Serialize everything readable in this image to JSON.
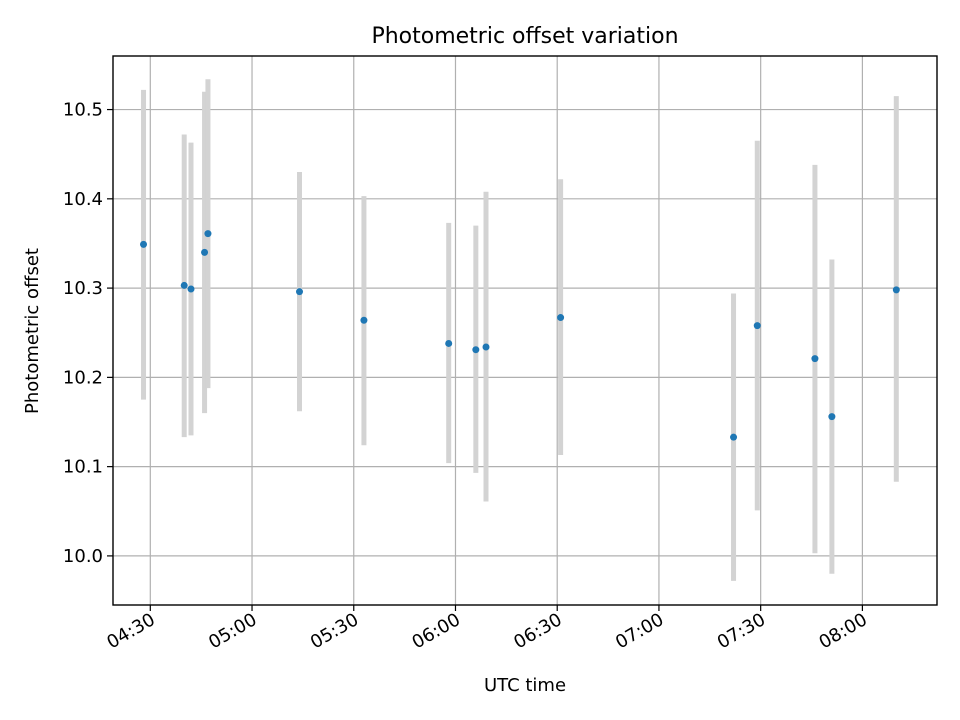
{
  "chart_data": {
    "type": "scatter",
    "title": "Photometric offset variation",
    "xlabel": "UTC time",
    "ylabel": "Photometric offset",
    "grid": true,
    "legend": "none",
    "colors": {
      "points": "#1f77b4",
      "errorbars": "#d3d3d3"
    },
    "xlim": [
      "04:19",
      "08:22"
    ],
    "ylim": [
      9.945,
      10.56
    ],
    "x_ticks": [
      "04:30",
      "05:00",
      "05:30",
      "06:00",
      "06:30",
      "07:00",
      "07:30",
      "08:00"
    ],
    "y_ticks": [
      "10.0",
      "10.1",
      "10.2",
      "10.3",
      "10.4",
      "10.5"
    ],
    "points": [
      {
        "x": "04:28",
        "y": 10.349,
        "ylow": 10.175,
        "yhigh": 10.522
      },
      {
        "x": "04:40",
        "y": 10.303,
        "ylow": 10.133,
        "yhigh": 10.472
      },
      {
        "x": "04:42",
        "y": 10.299,
        "ylow": 10.135,
        "yhigh": 10.463
      },
      {
        "x": "04:46",
        "y": 10.34,
        "ylow": 10.16,
        "yhigh": 10.52
      },
      {
        "x": "04:47",
        "y": 10.361,
        "ylow": 10.188,
        "yhigh": 10.534
      },
      {
        "x": "05:14",
        "y": 10.296,
        "ylow": 10.162,
        "yhigh": 10.43
      },
      {
        "x": "05:33",
        "y": 10.264,
        "ylow": 10.124,
        "yhigh": 10.403
      },
      {
        "x": "05:58",
        "y": 10.238,
        "ylow": 10.104,
        "yhigh": 10.373
      },
      {
        "x": "06:06",
        "y": 10.231,
        "ylow": 10.093,
        "yhigh": 10.37
      },
      {
        "x": "06:09",
        "y": 10.234,
        "ylow": 10.061,
        "yhigh": 10.408
      },
      {
        "x": "06:31",
        "y": 10.267,
        "ylow": 10.113,
        "yhigh": 10.422
      },
      {
        "x": "07:22",
        "y": 10.133,
        "ylow": 9.972,
        "yhigh": 10.294
      },
      {
        "x": "07:29",
        "y": 10.258,
        "ylow": 10.051,
        "yhigh": 10.465
      },
      {
        "x": "07:46",
        "y": 10.221,
        "ylow": 10.003,
        "yhigh": 10.438
      },
      {
        "x": "07:51",
        "y": 10.156,
        "ylow": 9.98,
        "yhigh": 10.332
      },
      {
        "x": "08:10",
        "y": 10.298,
        "ylow": 10.083,
        "yhigh": 10.515
      }
    ]
  }
}
